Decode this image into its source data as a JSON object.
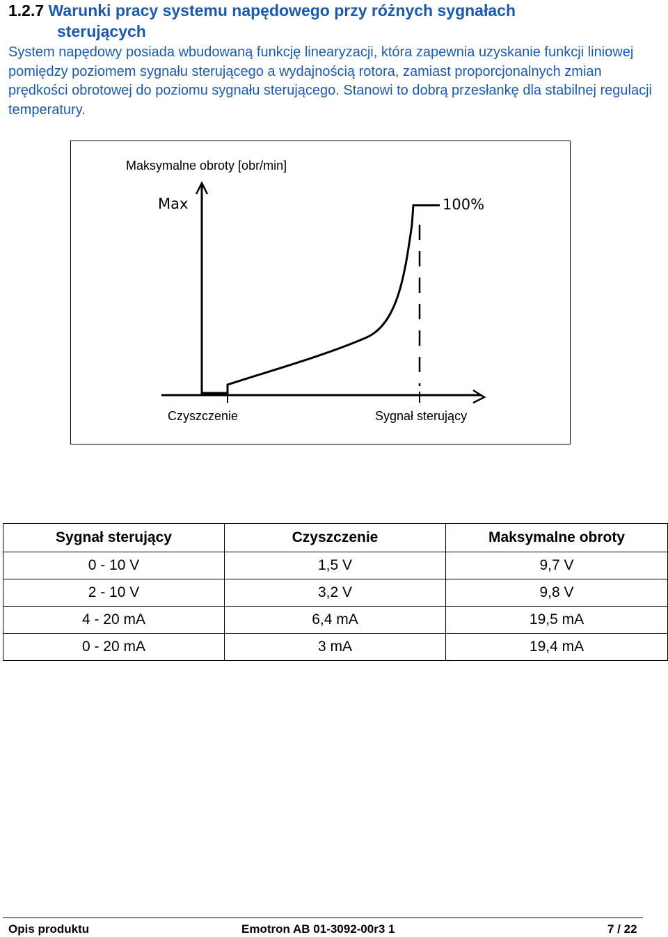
{
  "heading": {
    "number": "1.2.7",
    "title_line1": "Warunki pracy systemu napędowego przy różnych sygnałach",
    "title_line2": "sterujących"
  },
  "intro": {
    "text": "System napędowy posiada wbudowaną funkcję linearyzacji, która zapewnia uzyskanie funkcji liniowej pomiędzy poziomem sygnału sterującego a wydajnością rotora, zamiast proporcjonalnych zmian prędkości obrotowej do poziomu sygnału sterującego. Stanowi to dobrą przesłankę dla stabilnej regulacji temperatury."
  },
  "figure": {
    "ylabel": "Maksymalne obroty [obr/min]",
    "max_label": "Max",
    "percent_label": "100%",
    "x_left_label": "Czyszczenie",
    "x_right_label": "Sygnał sterujący",
    "color": "#000000"
  },
  "table": {
    "headers": [
      "Sygnał sterujący",
      "Czyszczenie",
      "Maksymalne obroty"
    ],
    "rows": [
      [
        "0 - 10 V",
        "1,5 V",
        "9,7 V"
      ],
      [
        "2 - 10 V",
        "3,2 V",
        "9,8 V"
      ],
      [
        "4 - 20 mA",
        "6,4 mA",
        "19,5 mA"
      ],
      [
        "0 - 20 mA",
        "3 mA",
        "19,4 mA"
      ]
    ]
  },
  "footer": {
    "left": "Opis produktu",
    "center": "Emotron AB 01-3092-00r3 1",
    "right": "7 / 22"
  }
}
